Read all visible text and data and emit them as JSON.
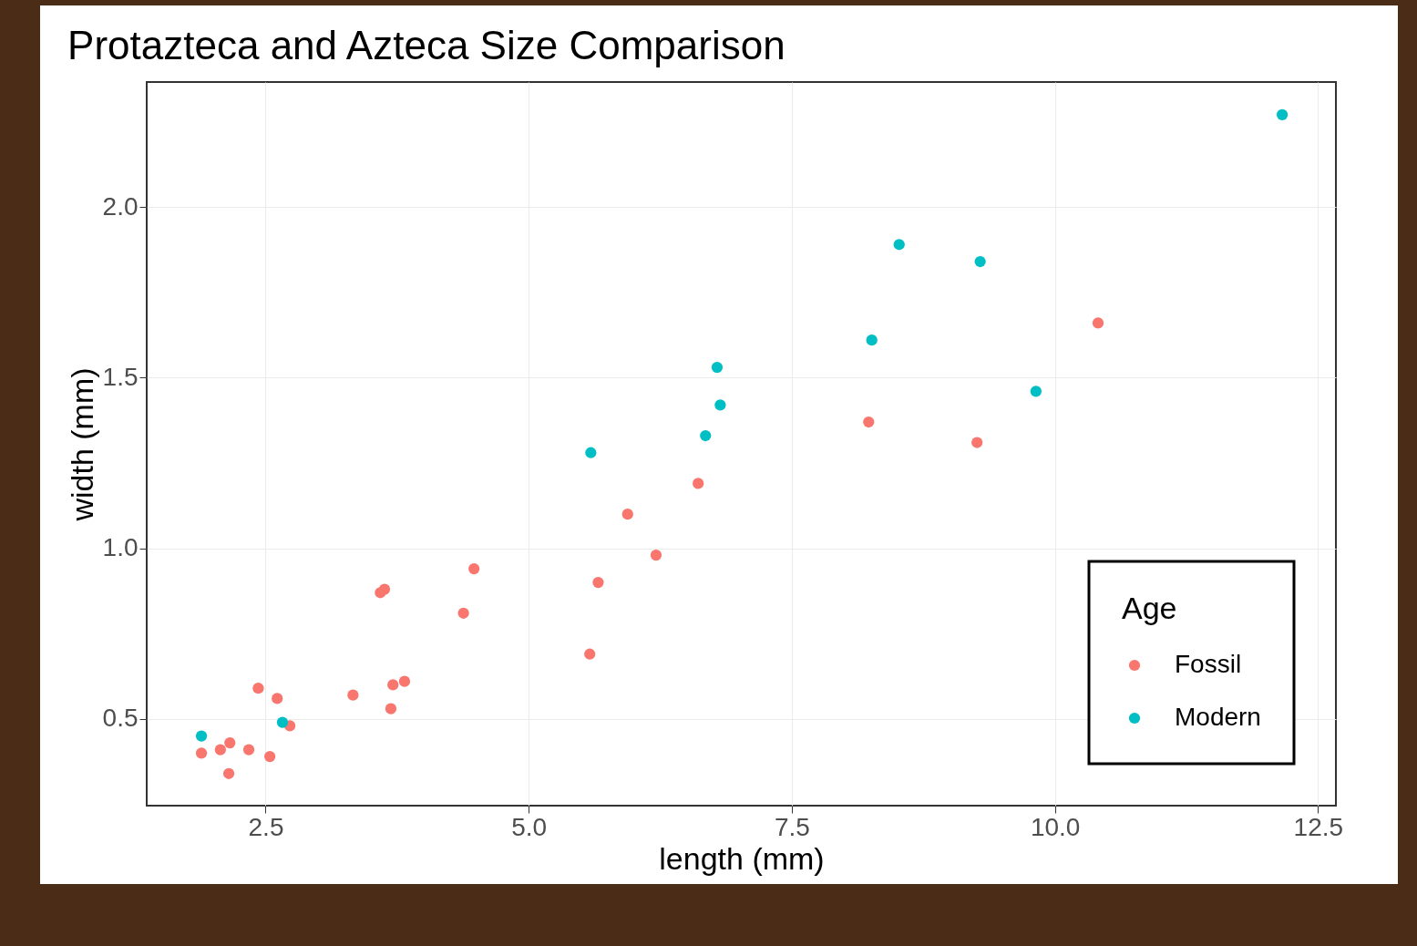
{
  "chart_data": {
    "type": "scatter",
    "title": "Protazteca and Azteca Size Comparison",
    "xlabel": "length (mm)",
    "ylabel": "width (mm)",
    "legend_title": "Age",
    "xlim": [
      1.37,
      12.67
    ],
    "ylim": [
      0.246,
      2.366
    ],
    "xticks": [
      2.5,
      {
        "value": 5,
        "label": "5.0"
      },
      7.5,
      {
        "value": 10,
        "label": "10.0"
      },
      12.5
    ],
    "yticks": [
      0.5,
      {
        "value": 1,
        "label": "1.0"
      },
      1.5,
      {
        "value": 2,
        "label": "2.0"
      }
    ],
    "grid": true,
    "legend": "bottom right",
    "series": [
      {
        "name": "Fossil",
        "color": "#f8766d",
        "x": [
          1.89,
          2.07,
          2.16,
          2.15,
          2.34,
          2.54,
          2.43,
          2.61,
          2.73,
          3.33,
          3.59,
          3.63,
          3.69,
          3.71,
          3.82,
          4.38,
          4.48,
          5.58,
          5.66,
          5.94,
          6.21,
          6.61,
          8.23,
          9.26,
          10.41
        ],
        "values": [
          0.4,
          0.41,
          0.43,
          0.34,
          0.41,
          0.39,
          0.59,
          0.56,
          0.48,
          0.57,
          0.87,
          0.88,
          0.53,
          0.6,
          0.61,
          0.81,
          0.94,
          0.69,
          0.9,
          1.1,
          0.98,
          1.19,
          1.37,
          1.31,
          1.66
        ]
      },
      {
        "name": "Modern",
        "color": "#00bfc4",
        "x": [
          1.89,
          2.66,
          5.59,
          6.68,
          6.82,
          6.79,
          8.26,
          8.52,
          9.29,
          9.82,
          12.16
        ],
        "values": [
          0.45,
          0.49,
          1.28,
          1.33,
          1.42,
          1.53,
          1.61,
          1.89,
          1.84,
          1.46,
          2.27
        ]
      }
    ]
  }
}
